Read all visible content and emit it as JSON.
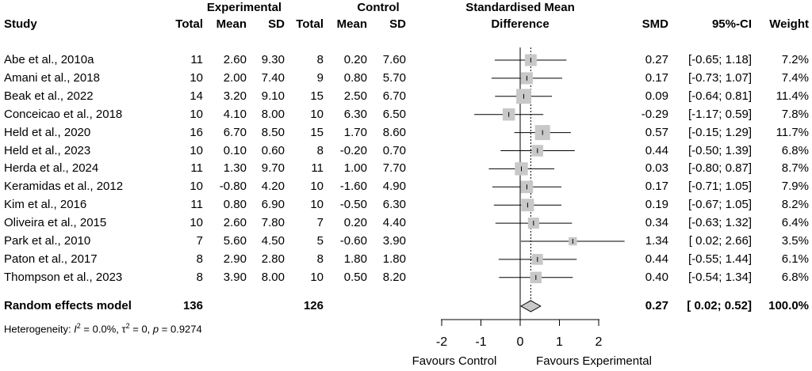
{
  "chart_data": {
    "type": "forest",
    "headers": {
      "group1": "Experimental",
      "group2": "Control",
      "study": "Study",
      "total": "Total",
      "mean": "Mean",
      "sd": "SD",
      "plot_title_line1": "Standardised Mean",
      "plot_title_line2": "Difference",
      "smd": "SMD",
      "ci": "95%-CI",
      "weight": "Weight"
    },
    "studies": [
      {
        "study": "Abe et al., 2010a",
        "e_total": "11",
        "e_mean": "2.60",
        "e_sd": "9.30",
        "c_total": "8",
        "c_mean": "0.20",
        "c_sd": "7.60",
        "smd": 0.27,
        "lower": -0.65,
        "upper": 1.18,
        "weight": 7.2,
        "smd_text": "0.27",
        "ci_text": "[-0.65; 1.18]",
        "weight_text": "7.2%"
      },
      {
        "study": "Amani et al., 2018",
        "e_total": "10",
        "e_mean": "2.00",
        "e_sd": "7.40",
        "c_total": "9",
        "c_mean": "0.80",
        "c_sd": "5.70",
        "smd": 0.17,
        "lower": -0.73,
        "upper": 1.07,
        "weight": 7.4,
        "smd_text": "0.17",
        "ci_text": "[-0.73; 1.07]",
        "weight_text": "7.4%"
      },
      {
        "study": "Beak et al., 2022",
        "e_total": "14",
        "e_mean": "3.20",
        "e_sd": "9.10",
        "c_total": "15",
        "c_mean": "2.50",
        "c_sd": "6.70",
        "smd": 0.09,
        "lower": -0.64,
        "upper": 0.81,
        "weight": 11.4,
        "smd_text": "0.09",
        "ci_text": "[-0.64; 0.81]",
        "weight_text": "11.4%"
      },
      {
        "study": "Conceicao  et al., 2018",
        "e_total": "10",
        "e_mean": "4.10",
        "e_sd": "8.00",
        "c_total": "10",
        "c_mean": "6.30",
        "c_sd": "6.50",
        "smd": -0.29,
        "lower": -1.17,
        "upper": 0.59,
        "weight": 7.8,
        "smd_text": "-0.29",
        "ci_text": "[-1.17; 0.59]",
        "weight_text": "7.8%"
      },
      {
        "study": "Held et al., 2020",
        "e_total": "16",
        "e_mean": "6.70",
        "e_sd": "8.50",
        "c_total": "15",
        "c_mean": "1.70",
        "c_sd": "8.60",
        "smd": 0.57,
        "lower": -0.15,
        "upper": 1.29,
        "weight": 11.7,
        "smd_text": "0.57",
        "ci_text": "[-0.15; 1.29]",
        "weight_text": "11.7%"
      },
      {
        "study": "Held et al., 2023",
        "e_total": "10",
        "e_mean": "0.10",
        "e_sd": "0.60",
        "c_total": "8",
        "c_mean": "-0.20",
        "c_sd": "0.70",
        "smd": 0.44,
        "lower": -0.5,
        "upper": 1.39,
        "weight": 6.8,
        "smd_text": "0.44",
        "ci_text": "[-0.50; 1.39]",
        "weight_text": "6.8%"
      },
      {
        "study": "Herda et al., 2024",
        "e_total": "11",
        "e_mean": "1.30",
        "e_sd": "9.70",
        "c_total": "11",
        "c_mean": "1.00",
        "c_sd": "7.70",
        "smd": 0.03,
        "lower": -0.8,
        "upper": 0.87,
        "weight": 8.7,
        "smd_text": "0.03",
        "ci_text": "[-0.80; 0.87]",
        "weight_text": "8.7%"
      },
      {
        "study": "Keramidas et al., 2012",
        "e_total": "10",
        "e_mean": "-0.80",
        "e_sd": "4.20",
        "c_total": "10",
        "c_mean": "-1.60",
        "c_sd": "4.90",
        "smd": 0.17,
        "lower": -0.71,
        "upper": 1.05,
        "weight": 7.9,
        "smd_text": "0.17",
        "ci_text": "[-0.71; 1.05]",
        "weight_text": "7.9%"
      },
      {
        "study": "Kim et al., 2016",
        "e_total": "11",
        "e_mean": "0.80",
        "e_sd": "6.90",
        "c_total": "10",
        "c_mean": "-0.50",
        "c_sd": "6.30",
        "smd": 0.19,
        "lower": -0.67,
        "upper": 1.05,
        "weight": 8.2,
        "smd_text": "0.19",
        "ci_text": "[-0.67; 1.05]",
        "weight_text": "8.2%"
      },
      {
        "study": "Oliveira et al., 2015",
        "e_total": "10",
        "e_mean": "2.60",
        "e_sd": "7.80",
        "c_total": "7",
        "c_mean": "0.20",
        "c_sd": "4.40",
        "smd": 0.34,
        "lower": -0.63,
        "upper": 1.32,
        "weight": 6.4,
        "smd_text": "0.34",
        "ci_text": "[-0.63; 1.32]",
        "weight_text": "6.4%"
      },
      {
        "study": "Park et al., 2010",
        "e_total": "7",
        "e_mean": "5.60",
        "e_sd": "4.50",
        "c_total": "5",
        "c_mean": "-0.60",
        "c_sd": "3.90",
        "smd": 1.34,
        "lower": 0.02,
        "upper": 2.66,
        "weight": 3.5,
        "smd_text": "1.34",
        "ci_text": "[ 0.02; 2.66]",
        "weight_text": "3.5%"
      },
      {
        "study": "Paton et al., 2017",
        "e_total": "8",
        "e_mean": "2.90",
        "e_sd": "2.80",
        "c_total": "8",
        "c_mean": "1.80",
        "c_sd": "1.80",
        "smd": 0.44,
        "lower": -0.55,
        "upper": 1.44,
        "weight": 6.1,
        "smd_text": "0.44",
        "ci_text": "[-0.55; 1.44]",
        "weight_text": "6.1%"
      },
      {
        "study": "Thompson et al., 2023",
        "e_total": "8",
        "e_mean": "3.90",
        "e_sd": "8.00",
        "c_total": "10",
        "c_mean": "0.50",
        "c_sd": "8.20",
        "smd": 0.4,
        "lower": -0.54,
        "upper": 1.34,
        "weight": 6.8,
        "smd_text": "0.40",
        "ci_text": "[-0.54; 1.34]",
        "weight_text": "6.8%"
      }
    ],
    "summary": {
      "label": "Random effects model",
      "e_total": "136",
      "c_total": "126",
      "smd": 0.27,
      "lower": 0.02,
      "upper": 0.52,
      "smd_text": "0.27",
      "ci_text": "[ 0.02; 0.52]",
      "weight_text": "100.0%"
    },
    "heterogeneity": {
      "prefix": "Heterogeneity: ",
      "i2_symbol": "I",
      "i2_value": " = 0.0%, ",
      "tau2_symbol": "τ",
      "tau2_value": " = 0, ",
      "p_symbol": "p",
      "p_value": " = 0.9274"
    },
    "x_axis": {
      "ticks": [
        -2,
        -1,
        0,
        1,
        2
      ],
      "tick_labels": [
        "-2",
        "-1",
        "0",
        "1",
        "2"
      ],
      "xlim": [
        -2,
        2
      ],
      "label_left": "Favours Control",
      "label_right": "Favours Experimental"
    }
  }
}
